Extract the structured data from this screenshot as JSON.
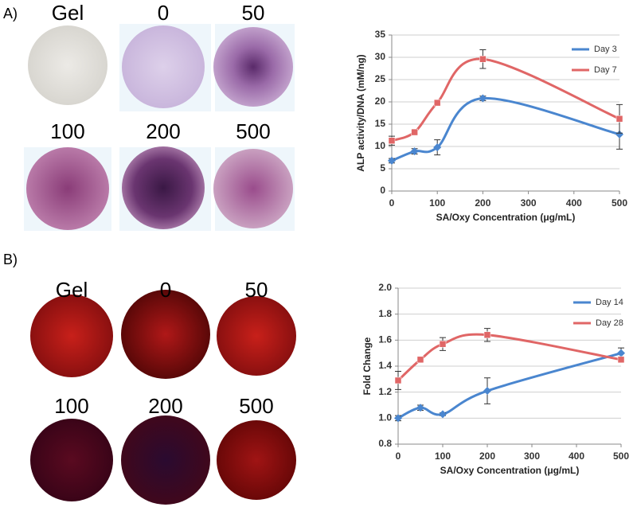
{
  "figure": {
    "panels": [
      {
        "label": "A)",
        "images": [
          "Gel",
          "0",
          "50",
          "100",
          "200",
          "500"
        ]
      },
      {
        "label": "B)",
        "images": [
          "Gel",
          "0",
          "50",
          "100",
          "200",
          "500"
        ]
      }
    ]
  },
  "chart_data": [
    {
      "type": "line",
      "xlabel": "SA/Oxy Concentration (μg/mL)",
      "ylabel": "ALP activity/DNA (mM/ng)",
      "x": [
        0,
        50,
        100,
        200,
        500
      ],
      "xlim": [
        0,
        500
      ],
      "xticks": [
        0,
        100,
        200,
        300,
        400,
        500
      ],
      "ylim": [
        0,
        35
      ],
      "yticks": [
        0,
        5,
        10,
        15,
        20,
        25,
        30,
        35
      ],
      "grid": true,
      "legend": "top-right",
      "series": [
        {
          "name": "Day 3",
          "color": "#4a86cf",
          "marker": "diamond",
          "values": [
            6.8,
            8.9,
            9.8,
            20.8,
            12.7
          ],
          "errors": [
            0.5,
            0.6,
            1.7,
            0.5,
            3.3
          ]
        },
        {
          "name": "Day 7",
          "color": "#e06666",
          "marker": "square",
          "values": [
            11.3,
            13.2,
            19.8,
            29.6,
            16.2
          ],
          "errors": [
            1.0,
            0.3,
            0.4,
            2.1,
            3.2
          ]
        }
      ]
    },
    {
      "type": "line",
      "xlabel": "SA/Oxy Concentration (μg/mL)",
      "ylabel": "Fold Change",
      "x": [
        0,
        50,
        100,
        200,
        500
      ],
      "xlim": [
        0,
        500
      ],
      "xticks": [
        0,
        100,
        200,
        300,
        400,
        500
      ],
      "ylim": [
        0.8,
        2.0
      ],
      "yticks": [
        {
          "value": 0.8,
          "label": "0.8"
        },
        {
          "value": 1.0,
          "label": "1.0"
        },
        {
          "value": 1.2,
          "label": "1.2"
        },
        {
          "value": 1.4,
          "label": "1.4"
        },
        {
          "value": 1.6,
          "label": "1.6"
        },
        {
          "value": 1.8,
          "label": "1.8"
        },
        {
          "value": 2.0,
          "label": "2.0"
        }
      ],
      "grid": true,
      "legend": "top-right",
      "series": [
        {
          "name": "Day 14",
          "color": "#4a86cf",
          "marker": "diamond",
          "values": [
            1.0,
            1.08,
            1.03,
            1.21,
            1.5
          ],
          "errors": [
            0.02,
            0.02,
            0.01,
            0.1,
            0.04
          ]
        },
        {
          "name": "Day 28",
          "color": "#e06666",
          "marker": "square",
          "values": [
            1.29,
            1.45,
            1.57,
            1.64,
            1.45
          ],
          "errors": [
            0.07,
            0.02,
            0.05,
            0.05,
            0.02
          ]
        }
      ]
    }
  ]
}
